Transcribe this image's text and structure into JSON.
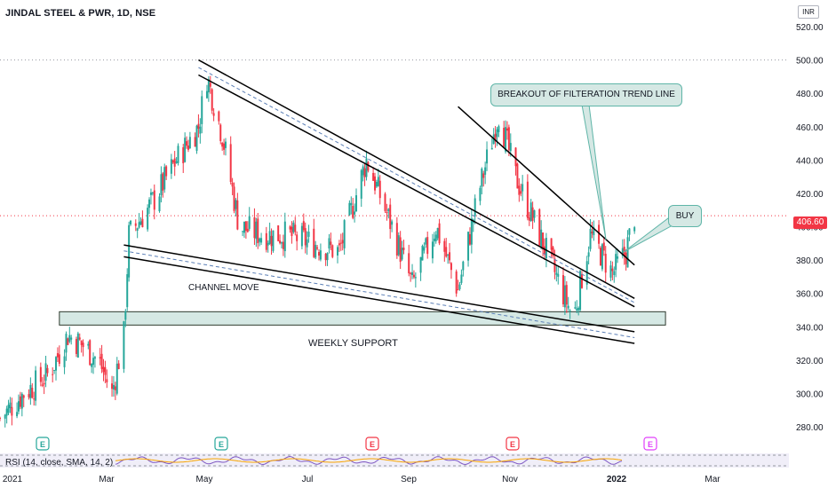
{
  "header": {
    "title": "JINDAL STEEL & PWR, 1D, NSE",
    "currency": "INR"
  },
  "price_tag": "406.60",
  "annotations": {
    "breakout_callout": "BREAKOUT OF FILTERATION TREND LINE",
    "buy_callout": "BUY",
    "channel_label": "CHANNEL MOVE",
    "support_label": "WEEKLY SUPPORT"
  },
  "rsi_label": "RSI (14, close, SMA, 14, 2)",
  "earnings_markers": [
    {
      "label": "E",
      "date": "2021-02-15",
      "color": "#26a69a"
    },
    {
      "label": "E",
      "date": "2021-06-10",
      "color": "#26a69a"
    },
    {
      "label": "E",
      "date": "2021-08-25",
      "color": "#f23645"
    },
    {
      "label": "E",
      "date": "2021-11-08",
      "color": "#f23645"
    },
    {
      "label": "E",
      "date": "2022-02-10",
      "color": "#e040fb"
    }
  ],
  "colors": {
    "up": "#26a69a",
    "down": "#f23645",
    "trendline": "#000000",
    "support_fill": "#d5e8e4",
    "support_border": "#2e3a2e"
  },
  "chart_data": {
    "type": "candlestick",
    "title": "JINDAL STEEL & PWR, 1D, NSE",
    "y_ticks": [
      "520.00",
      "500.00",
      "480.00",
      "460.00",
      "440.00",
      "420.00",
      "400.00",
      "380.00",
      "360.00",
      "340.00",
      "320.00",
      "300.00",
      "280.00"
    ],
    "x_ticks": [
      "2021",
      "Mar",
      "May",
      "Jul",
      "Sep",
      "Nov",
      "2022",
      "Mar"
    ],
    "ylim": [
      270,
      525
    ],
    "last_price": 406.6,
    "high_line": 500,
    "weekly_support": {
      "low": 341,
      "high": 349,
      "from": "2021-02-05",
      "to": "2021-12-31"
    },
    "trendlines": [
      {
        "name": "upper-channel-a",
        "points": [
          [
            "2021-04-28",
            500
          ],
          [
            "2022-01-10",
            357
          ]
        ]
      },
      {
        "name": "upper-channel-b",
        "points": [
          [
            "2021-04-28",
            491
          ],
          [
            "2022-01-10",
            352
          ]
        ]
      },
      {
        "name": "filtration-line",
        "points": [
          [
            "2021-09-28",
            472
          ],
          [
            "2022-01-10",
            377
          ]
        ]
      },
      {
        "name": "lower-channel-a",
        "points": [
          [
            "2021-03-15",
            389
          ],
          [
            "2022-01-10",
            337
          ]
        ]
      },
      {
        "name": "lower-channel-b",
        "points": [
          [
            "2021-03-15",
            382
          ],
          [
            "2022-01-10",
            330
          ]
        ]
      }
    ],
    "series": [
      {
        "date": "2021-01-01",
        "close": 285
      },
      {
        "date": "2021-01-15",
        "close": 300
      },
      {
        "date": "2021-01-30",
        "close": 312
      },
      {
        "date": "2021-02-10",
        "close": 335
      },
      {
        "date": "2021-02-20",
        "close": 328
      },
      {
        "date": "2021-03-01",
        "close": 318
      },
      {
        "date": "2021-03-08",
        "close": 300
      },
      {
        "date": "2021-03-15",
        "close": 335
      },
      {
        "date": "2021-03-18",
        "close": 395
      },
      {
        "date": "2021-04-01",
        "close": 415
      },
      {
        "date": "2021-04-15",
        "close": 440
      },
      {
        "date": "2021-04-28",
        "close": 460
      },
      {
        "date": "2021-05-03",
        "close": 490
      },
      {
        "date": "2021-05-12",
        "close": 455
      },
      {
        "date": "2021-05-22",
        "close": 400
      },
      {
        "date": "2021-06-05",
        "close": 395
      },
      {
        "date": "2021-06-20",
        "close": 395
      },
      {
        "date": "2021-07-05",
        "close": 390
      },
      {
        "date": "2021-07-20",
        "close": 385
      },
      {
        "date": "2021-08-05",
        "close": 440
      },
      {
        "date": "2021-08-20",
        "close": 400
      },
      {
        "date": "2021-09-01",
        "close": 365
      },
      {
        "date": "2021-09-15",
        "close": 400
      },
      {
        "date": "2021-09-28",
        "close": 362
      },
      {
        "date": "2021-10-10",
        "close": 420
      },
      {
        "date": "2021-10-22",
        "close": 468
      },
      {
        "date": "2021-11-01",
        "close": 430
      },
      {
        "date": "2021-11-15",
        "close": 395
      },
      {
        "date": "2021-11-25",
        "close": 370
      },
      {
        "date": "2021-12-05",
        "close": 345
      },
      {
        "date": "2021-12-15",
        "close": 395
      },
      {
        "date": "2021-12-28",
        "close": 372
      },
      {
        "date": "2022-01-05",
        "close": 385
      },
      {
        "date": "2022-01-10",
        "close": 406.6
      }
    ]
  }
}
